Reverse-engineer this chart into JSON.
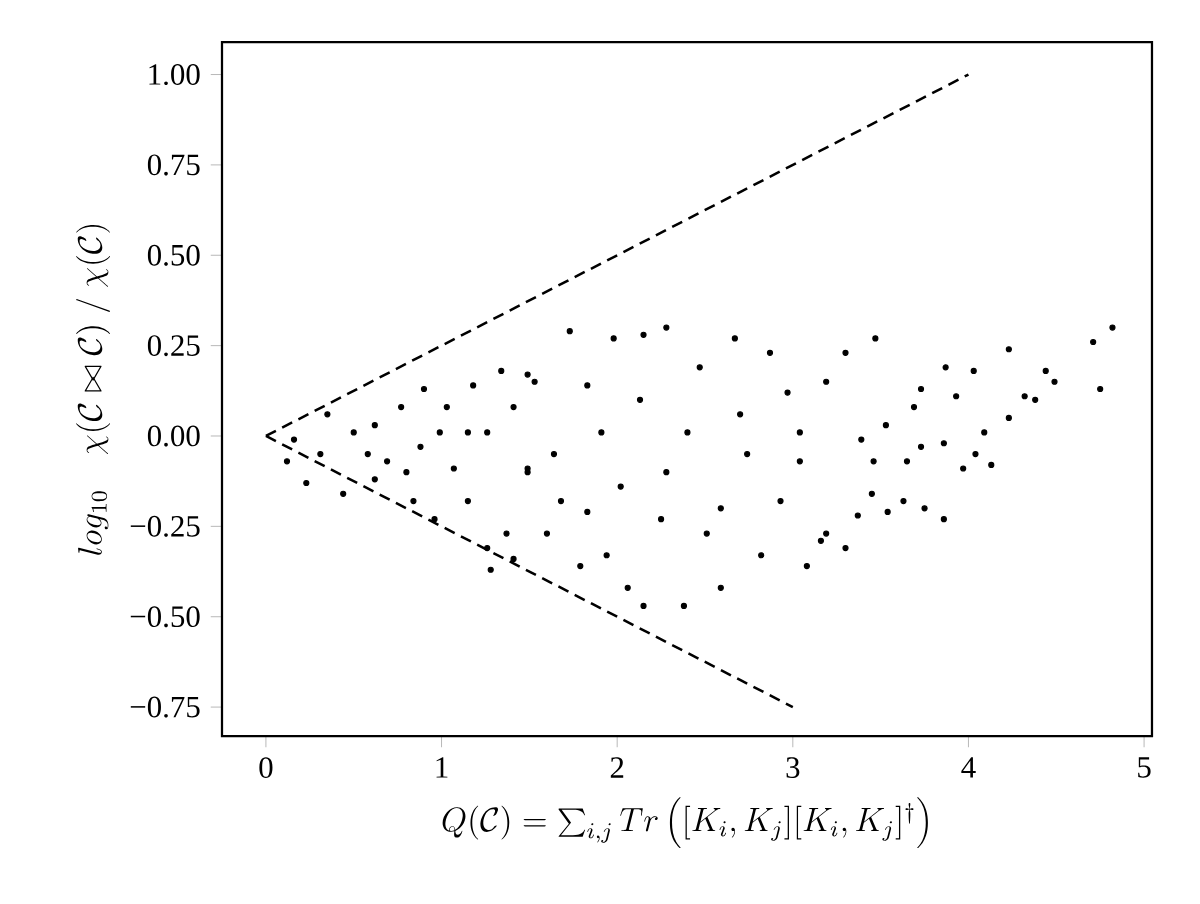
{
  "chart_data": {
    "type": "scatter",
    "xlabel": "Q(\\mathcal{C}) = \\sum_{i,j} Tr\\left([K_i,K_j][K_i,K_j]^\\dagger\\right)",
    "ylabel": "log_{10}\\quad \\chi(\\mathcal{C}\\bowtie\\mathcal{C})\\;/\\;\\chi(\\mathcal{C})",
    "xlim": [
      -0.25,
      5.045
    ],
    "ylim": [
      -0.83,
      1.09
    ],
    "xticks": [
      0,
      1,
      2,
      3,
      4,
      5
    ],
    "yticks": [
      {
        "value": -0.75,
        "label": "−0.75"
      },
      {
        "value": -0.5,
        "label": "−0.50"
      },
      {
        "value": -0.25,
        "label": "−0.25"
      },
      {
        "value": 0,
        "label": "0.00"
      },
      {
        "value": 0.25,
        "label": "0.25"
      },
      {
        "value": 0.5,
        "label": "0.50"
      },
      {
        "value": 0.75,
        "label": "0.75"
      },
      {
        "value": 1,
        "label": "1.00"
      }
    ],
    "series": [
      {
        "color": "#000000",
        "marker": "circle",
        "x": [
          4.82,
          4.71,
          4.75,
          4.23,
          4.44,
          4.49,
          4.32,
          4.38,
          4.23,
          4.13,
          3.97,
          3.86,
          3.3,
          3.47,
          3.3,
          3.87,
          4.03,
          3.93,
          4.09,
          4.04,
          3.73,
          3.69,
          3.75,
          3.63,
          3.54,
          3.37,
          3.19,
          3.86,
          3.73,
          3.53,
          3.46,
          3.65,
          3.39,
          3.45,
          2.28,
          1.73,
          2.15,
          2.67,
          2.87,
          1.98,
          3.08,
          2.38,
          2.15,
          2.59,
          2.06,
          1.79,
          1.94,
          1.6,
          2.82,
          2.93,
          3.16,
          3.19,
          2.97,
          2.7,
          2.4,
          2.13,
          1.83,
          1.53,
          1.64,
          2.02,
          2.28,
          2.59,
          2.74,
          3.04,
          2.47,
          3.04,
          2.25,
          1.83,
          1.68,
          1.49,
          1.91,
          2.51,
          0.12,
          0.23,
          0.44,
          0.35,
          0.16,
          0.31,
          0.5,
          0.62,
          0.77,
          0.9,
          0.69,
          0.62,
          0.84,
          0.96,
          0.8,
          0.88,
          1.03,
          1.18,
          1.34,
          1.49,
          1.07,
          1.15,
          1.26,
          1.28,
          1.41,
          1.37,
          1.26,
          1.41,
          1.15,
          1.49,
          0.99,
          0.58
        ],
        "values": [
          0.3,
          0.26,
          0.13,
          0.24,
          0.18,
          0.15,
          0.11,
          0.1,
          0.05,
          -0.08,
          -0.09,
          -0.23,
          -0.31,
          0.27,
          0.23,
          0.19,
          0.18,
          0.11,
          0.01,
          -0.05,
          0.13,
          0.08,
          -0.2,
          -0.18,
          -0.21,
          -0.22,
          -0.27,
          -0.02,
          -0.03,
          0.03,
          -0.07,
          -0.07,
          -0.01,
          -0.16,
          0.3,
          0.29,
          0.28,
          0.27,
          0.23,
          0.27,
          -0.36,
          -0.47,
          -0.47,
          -0.42,
          -0.42,
          -0.36,
          -0.33,
          -0.27,
          -0.33,
          -0.18,
          -0.29,
          0.15,
          0.12,
          0.06,
          0.01,
          0.1,
          0.14,
          0.15,
          -0.05,
          -0.14,
          -0.1,
          -0.2,
          -0.05,
          -0.07,
          0.19,
          0.01,
          -0.23,
          -0.21,
          -0.18,
          -0.1,
          0.01,
          -0.27,
          -0.07,
          -0.13,
          -0.16,
          0.06,
          -0.01,
          -0.05,
          0.01,
          0.03,
          0.08,
          0.13,
          -0.07,
          -0.12,
          -0.18,
          -0.23,
          -0.1,
          -0.03,
          0.08,
          0.14,
          0.18,
          0.17,
          -0.09,
          -0.18,
          -0.31,
          -0.37,
          -0.34,
          -0.27,
          0.01,
          0.08,
          0.01,
          -0.09,
          0.01,
          -0.05
        ]
      },
      {
        "type": "line",
        "color": "#000000",
        "marker": "none",
        "line_style": "dashed",
        "x": [
          0,
          4
        ],
        "values": [
          0,
          1
        ]
      },
      {
        "type": "line",
        "color": "#000000",
        "marker": "none",
        "line_style": "dashed",
        "x": [
          0,
          3
        ],
        "values": [
          0,
          -0.75
        ]
      }
    ]
  }
}
